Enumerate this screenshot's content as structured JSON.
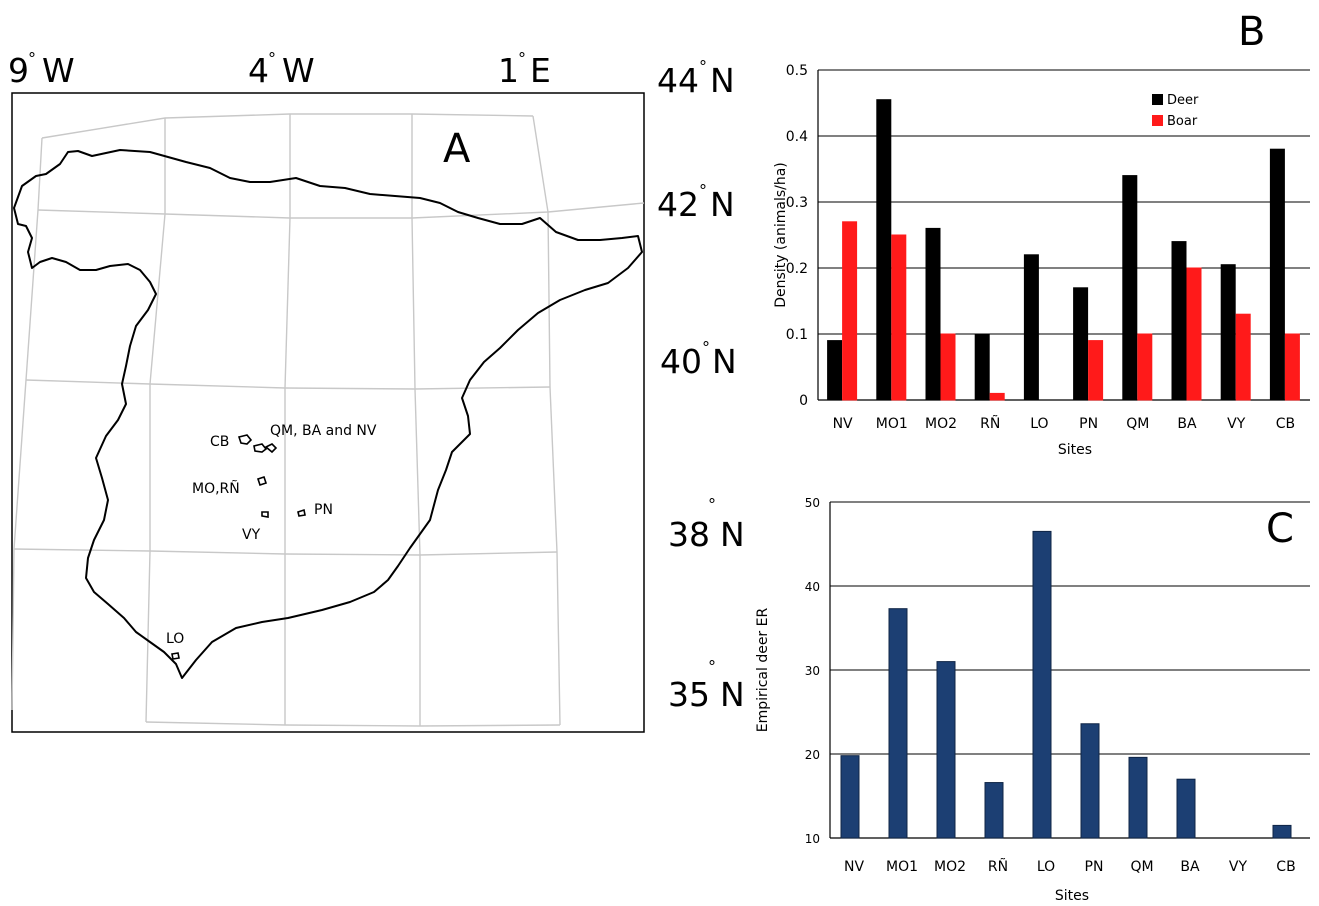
{
  "panel_a": {
    "letter": "A",
    "lon_labels": [
      "9",
      "4",
      "1"
    ],
    "lon_hemis": [
      "W",
      "W",
      "E"
    ],
    "lat_labels": [
      "44",
      "42",
      "40",
      "38",
      "35"
    ],
    "lat_hemi": "N",
    "sites": [
      {
        "label": "CB"
      },
      {
        "label": "QM, BA and NV"
      },
      {
        "label": "MO,RÑ"
      },
      {
        "label": "PN"
      },
      {
        "label": "VY"
      },
      {
        "label": "LO"
      }
    ]
  },
  "chart_data": [
    {
      "panel": "B",
      "type": "bar",
      "title": "",
      "xlabel": "Sites",
      "ylabel": "Density (animals/ha)",
      "categories": [
        "NV",
        "MO1",
        "MO2",
        "RÑ",
        "LO",
        "PN",
        "QM",
        "BA",
        "VY",
        "CB"
      ],
      "series": [
        {
          "name": "Deer",
          "color": "#000000",
          "values": [
            0.09,
            0.455,
            0.26,
            0.1,
            0.22,
            0.17,
            0.34,
            0.24,
            0.205,
            0.38
          ]
        },
        {
          "name": "Boar",
          "color": "#ff1a1a",
          "values": [
            0.27,
            0.25,
            0.1,
            0.01,
            0,
            0.09,
            0.1,
            0.2,
            0.13,
            0.1
          ]
        }
      ],
      "ylim": [
        0,
        0.5
      ],
      "yticks": [
        "0",
        "0.1",
        "0.2",
        "0.3",
        "0.4",
        "0.5"
      ],
      "grid": true,
      "legend": "top-right"
    },
    {
      "panel": "C",
      "type": "bar",
      "title": "",
      "xlabel": "Sites",
      "ylabel": "Empirical deer ER",
      "categories": [
        "NV",
        "MO1",
        "MO2",
        "RÑ",
        "LO",
        "PN",
        "QM",
        "BA",
        "VY",
        "CB"
      ],
      "series": [
        {
          "color": "#1c3f73",
          "values": [
            19.8,
            37.3,
            31.0,
            16.6,
            46.5,
            23.6,
            19.6,
            17.0,
            null,
            11.5
          ]
        }
      ],
      "ylim": [
        10,
        50
      ],
      "yticks": [
        "10",
        "20",
        "30",
        "40",
        "50"
      ],
      "grid": true
    }
  ]
}
